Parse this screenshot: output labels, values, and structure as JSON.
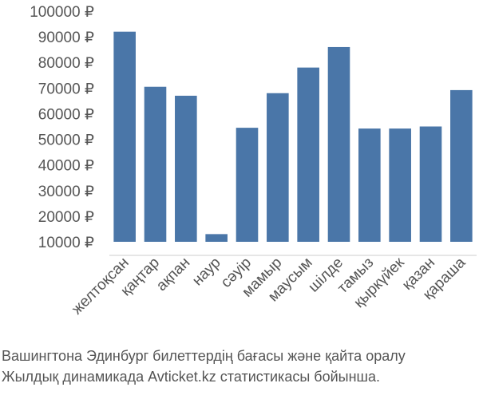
{
  "chart_data": {
    "type": "bar",
    "title": "Вашингтона Эдинбург билеттердің бағасы және қайта оралу",
    "subtitle": "Жылдық динамикада Avticket.kz статистикасы бойынша.",
    "categories": [
      "желтоқсан",
      "қаңтар",
      "ақпан",
      "наур",
      "сәуір",
      "мамыр",
      "маусым",
      "шілде",
      "тамыз",
      "қыркүйек",
      "қазан",
      "қараша"
    ],
    "values": [
      92000,
      70500,
      67000,
      13000,
      54500,
      68000,
      78000,
      86000,
      54200,
      54200,
      55000,
      69200
    ],
    "color": "#4a76a8",
    "ylim": [
      10000,
      100000
    ],
    "yticks": [
      {
        "value": 10000,
        "label": "10000 ₽"
      },
      {
        "value": 20000,
        "label": "20000 ₽"
      },
      {
        "value": 30000,
        "label": "30000 ₽"
      },
      {
        "value": 40000,
        "label": "40000 ₽"
      },
      {
        "value": 50000,
        "label": "50000 ₽"
      },
      {
        "value": 60000,
        "label": "60000 ₽"
      },
      {
        "value": 70000,
        "label": "70000 ₽"
      },
      {
        "value": 80000,
        "label": "80000 ₽"
      },
      {
        "value": 90000,
        "label": "90000 ₽"
      },
      {
        "value": 100000,
        "label": "100000 ₽"
      }
    ],
    "grid": false
  }
}
